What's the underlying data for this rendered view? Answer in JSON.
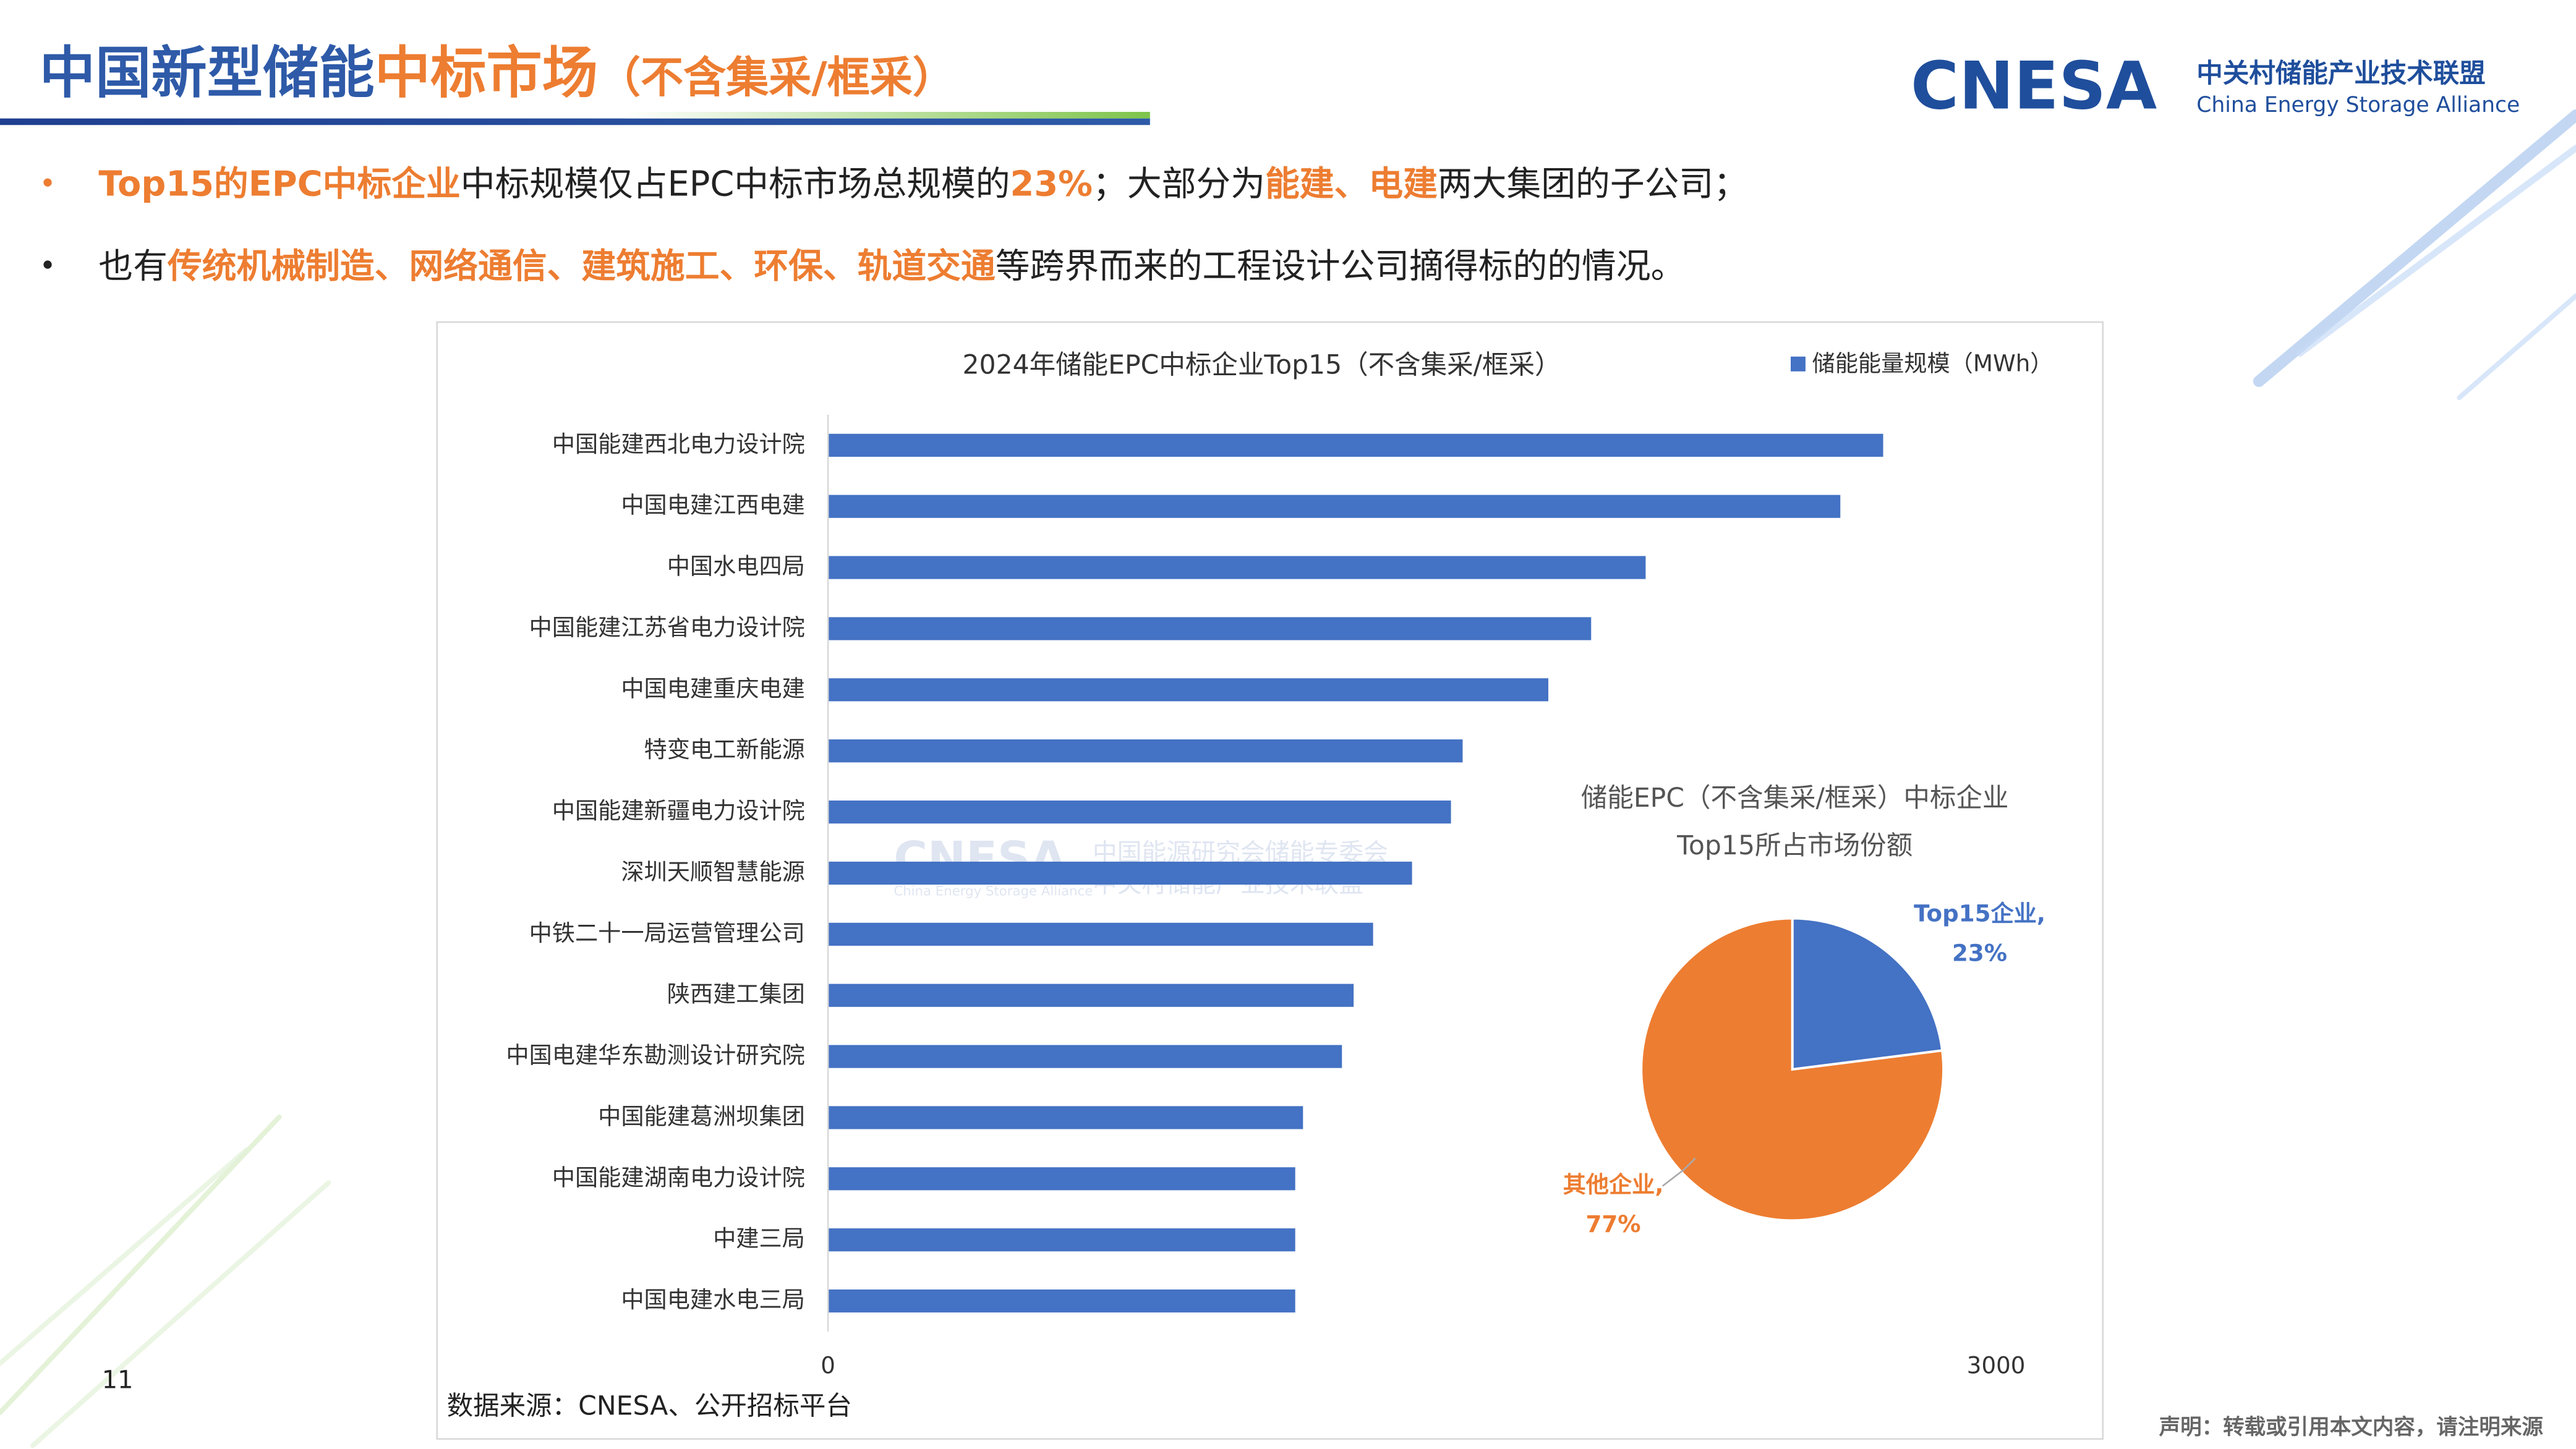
{
  "header": {
    "title": [
      "中国新型储能",
      "中标市场",
      "（不含集采/框采）"
    ],
    "logo": {
      "mark": "CNESA",
      "name": "中关村储能产业技术联盟",
      "name_en": "China Energy Storage Alliance"
    }
  },
  "bullets": [
    [
      "Top15的EPC中标企业",
      "中标规模仅占EPC中标市场总规模的",
      "23%",
      "；大部分为",
      "能建、电建",
      "两大集团的子公司；"
    ],
    [
      "也有",
      "传统机械制造、网络通信、建筑施工、环保、轨道交通",
      "等跨界而来的工程设计公司摘得标的的情况。"
    ]
  ],
  "chart_data": [
    {
      "type": "bar",
      "orientation": "horizontal",
      "title": "2024年储能EPC中标企业Top15（不含集采/框采）",
      "categories": [
        "中国能建西北电力设计院",
        "中国电建江西电建",
        "中国水电四局",
        "中国能建江苏省电力设计院",
        "中国电建重庆电建",
        "特变电工新能源",
        "中国能建新疆电力设计院",
        "深圳天顺智慧能源",
        "中铁二十一局运营管理公司",
        "陕西建工集团",
        "中国电建华东勘测设计研究院",
        "中国能建葛洲坝集团",
        "中国能建湖南电力设计院",
        "中建三局",
        "中国电建水电三局"
      ],
      "series": [
        {
          "name": "储能能量规模（MWh）",
          "color": "#4472c4",
          "values": [
            2710,
            2600,
            2100,
            1960,
            1850,
            1630,
            1600,
            1500,
            1400,
            1350,
            1320,
            1220,
            1200,
            1200,
            1200
          ]
        }
      ],
      "xlim": [
        0,
        3000
      ],
      "xticks": [
        0,
        3000
      ],
      "grid": false,
      "legend": "top-right",
      "source": "数据来源：CNESA、公开招标平台"
    },
    {
      "type": "pie",
      "title": "储能EPC（不含集采/框采）中标企业Top15所占市场份额",
      "categories": [
        "Top15企业,",
        "其他企业,"
      ],
      "values": [
        23,
        77
      ],
      "value_labels": [
        "23%",
        "77%"
      ],
      "colors": [
        "#4472c4",
        "#ed7d31"
      ]
    }
  ],
  "watermark": [
    "CNESA",
    "中国能源研究会储能专委会",
    "China Energy Storage Alliance",
    "中关村储能产业技术联盟"
  ],
  "footer": {
    "page": "11",
    "notice": "声明：转载或引用本文内容，请注明来源"
  }
}
